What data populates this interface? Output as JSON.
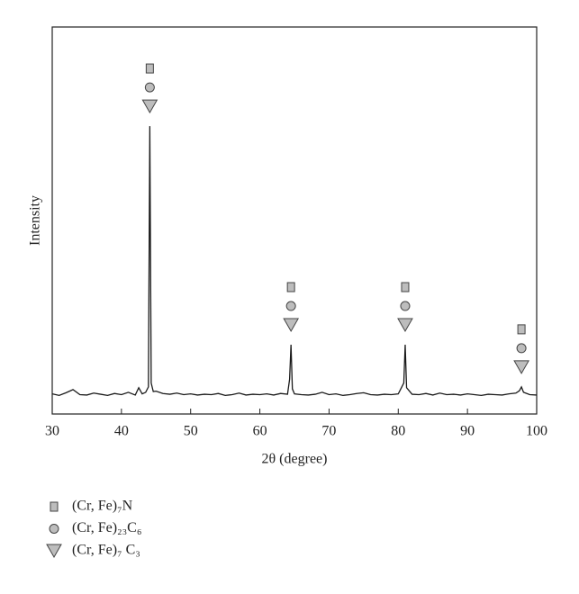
{
  "chart_data": {
    "type": "line",
    "x_label": "2θ (degree)",
    "y_label": "Intensity",
    "xlim": [
      30,
      100
    ],
    "xticks": [
      30,
      40,
      50,
      60,
      70,
      80,
      90,
      100
    ],
    "ylim": [
      0,
      100
    ],
    "pattern": {
      "color": "#1a1a1a",
      "x": [
        30,
        31,
        32,
        33,
        34,
        35,
        36,
        37,
        38,
        39,
        40,
        41,
        42,
        42.5,
        43,
        43.5,
        43.9,
        44.1,
        44.3,
        44.6,
        45,
        46,
        47,
        48,
        49,
        50,
        51,
        52,
        53,
        54,
        55,
        56,
        57,
        58,
        59,
        60,
        61,
        62,
        63,
        64,
        64.3,
        64.5,
        64.7,
        65,
        66,
        67,
        68,
        69,
        70,
        71,
        72,
        73,
        74,
        75,
        76,
        77,
        78,
        79,
        80,
        80.8,
        81,
        81.2,
        82,
        83,
        84,
        85,
        86,
        87,
        88,
        89,
        90,
        91,
        92,
        93,
        94,
        95,
        96,
        97,
        97.5,
        97.8,
        98.1,
        99,
        100
      ],
      "values": [
        5.2,
        4.8,
        5.5,
        6.3,
        5.0,
        4.9,
        5.4,
        5.1,
        4.8,
        5.3,
        5.0,
        5.6,
        4.9,
        6.8,
        5.2,
        5.6,
        7.0,
        74.4,
        8.0,
        5.8,
        5.9,
        5.3,
        5.1,
        5.4,
        5.0,
        5.2,
        4.9,
        5.1,
        5.0,
        5.3,
        4.8,
        5.0,
        5.4,
        4.9,
        5.1,
        5.0,
        5.2,
        4.9,
        5.3,
        5.1,
        9.0,
        17.9,
        6.5,
        5.2,
        5.0,
        4.9,
        5.1,
        5.6,
        5.0,
        5.2,
        4.8,
        5.0,
        5.3,
        5.5,
        5.0,
        4.9,
        5.1,
        5.0,
        5.2,
        8.0,
        17.9,
        6.8,
        5.1,
        5.0,
        5.3,
        4.9,
        5.4,
        5.0,
        5.1,
        4.9,
        5.2,
        5.0,
        4.8,
        5.1,
        5.0,
        4.9,
        5.2,
        5.4,
        6.0,
        7.0,
        5.6,
        5.0,
        4.9
      ]
    },
    "series": [
      {
        "name": "(Cr, Fe)₇N",
        "marker": "square",
        "color": "#bdbdbd",
        "x": [
          44.1,
          64.5,
          81,
          97.8
        ]
      },
      {
        "name": "(Cr, Fe)₂₃C₆",
        "marker": "circle",
        "color": "#bdbdbd",
        "x": [
          44.1,
          64.5,
          81,
          97.8
        ]
      },
      {
        "name": "(Cr, Fe)₇ C₃",
        "marker": "triangle",
        "color": "#bdbdbd",
        "x": [
          44.1,
          64.5,
          81,
          97.8
        ]
      }
    ]
  }
}
